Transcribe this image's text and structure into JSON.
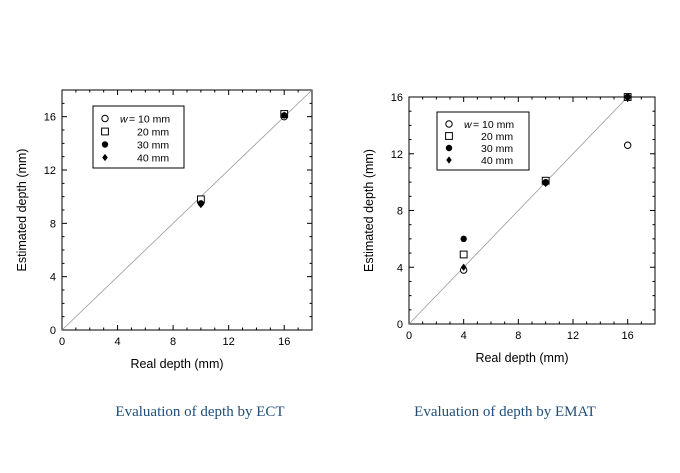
{
  "chart_data": [
    {
      "type": "scatter",
      "xlabel": "Real depth (mm)",
      "ylabel": "Estimated depth (mm)",
      "xlim": [
        0,
        18
      ],
      "ylim": [
        0,
        18
      ],
      "x_ticks": [
        0,
        4,
        8,
        12,
        16
      ],
      "y_ticks": [
        0,
        4,
        8,
        12,
        16
      ],
      "reference_line": "y = x",
      "legend": {
        "placement": "top-left",
        "prefix": "w",
        "entries": [
          "= 10 mm",
          "20 mm",
          "30 mm",
          "40 mm"
        ]
      },
      "series": [
        {
          "name": "w = 10 mm",
          "marker": "open-circle",
          "points": [
            [
              10,
              9.6
            ],
            [
              16,
              16.0
            ]
          ]
        },
        {
          "name": "20 mm",
          "marker": "open-square",
          "points": [
            [
              10,
              9.8
            ],
            [
              16,
              16.2
            ]
          ]
        },
        {
          "name": "30 mm",
          "marker": "filled-circle",
          "points": [
            [
              10,
              9.5
            ],
            [
              16,
              16.1
            ]
          ]
        },
        {
          "name": "40 mm",
          "marker": "filled-diamond",
          "points": [
            [
              10,
              9.4
            ],
            [
              16,
              16.1
            ]
          ]
        }
      ],
      "caption": "Evaluation of depth by ECT"
    },
    {
      "type": "scatter",
      "xlabel": "Real depth (mm)",
      "ylabel": "Estimated depth (mm)",
      "xlim": [
        0,
        18
      ],
      "ylim": [
        0,
        16
      ],
      "x_ticks": [
        0,
        4,
        8,
        12,
        16
      ],
      "y_ticks": [
        0,
        4,
        8,
        12,
        16
      ],
      "reference_line": "y = x",
      "legend": {
        "placement": "top-left",
        "prefix": "w",
        "entries": [
          "= 10 mm",
          "20 mm",
          "30 mm",
          "40 mm"
        ]
      },
      "series": [
        {
          "name": "w = 10 mm",
          "marker": "open-circle",
          "points": [
            [
              4,
              3.8
            ],
            [
              10,
              10.0
            ],
            [
              16,
              12.6
            ]
          ]
        },
        {
          "name": "20 mm",
          "marker": "open-square",
          "points": [
            [
              4,
              4.9
            ],
            [
              10,
              10.1
            ],
            [
              16,
              16.0
            ]
          ]
        },
        {
          "name": "30 mm",
          "marker": "filled-circle",
          "points": [
            [
              4,
              6.0
            ],
            [
              10,
              10.0
            ],
            [
              16,
              16.0
            ]
          ]
        },
        {
          "name": "40 mm",
          "marker": "filled-diamond",
          "points": [
            [
              4,
              4.0
            ],
            [
              10,
              9.9
            ],
            [
              16,
              16.0
            ]
          ]
        }
      ],
      "caption": "Evaluation of depth by EMAT"
    }
  ]
}
